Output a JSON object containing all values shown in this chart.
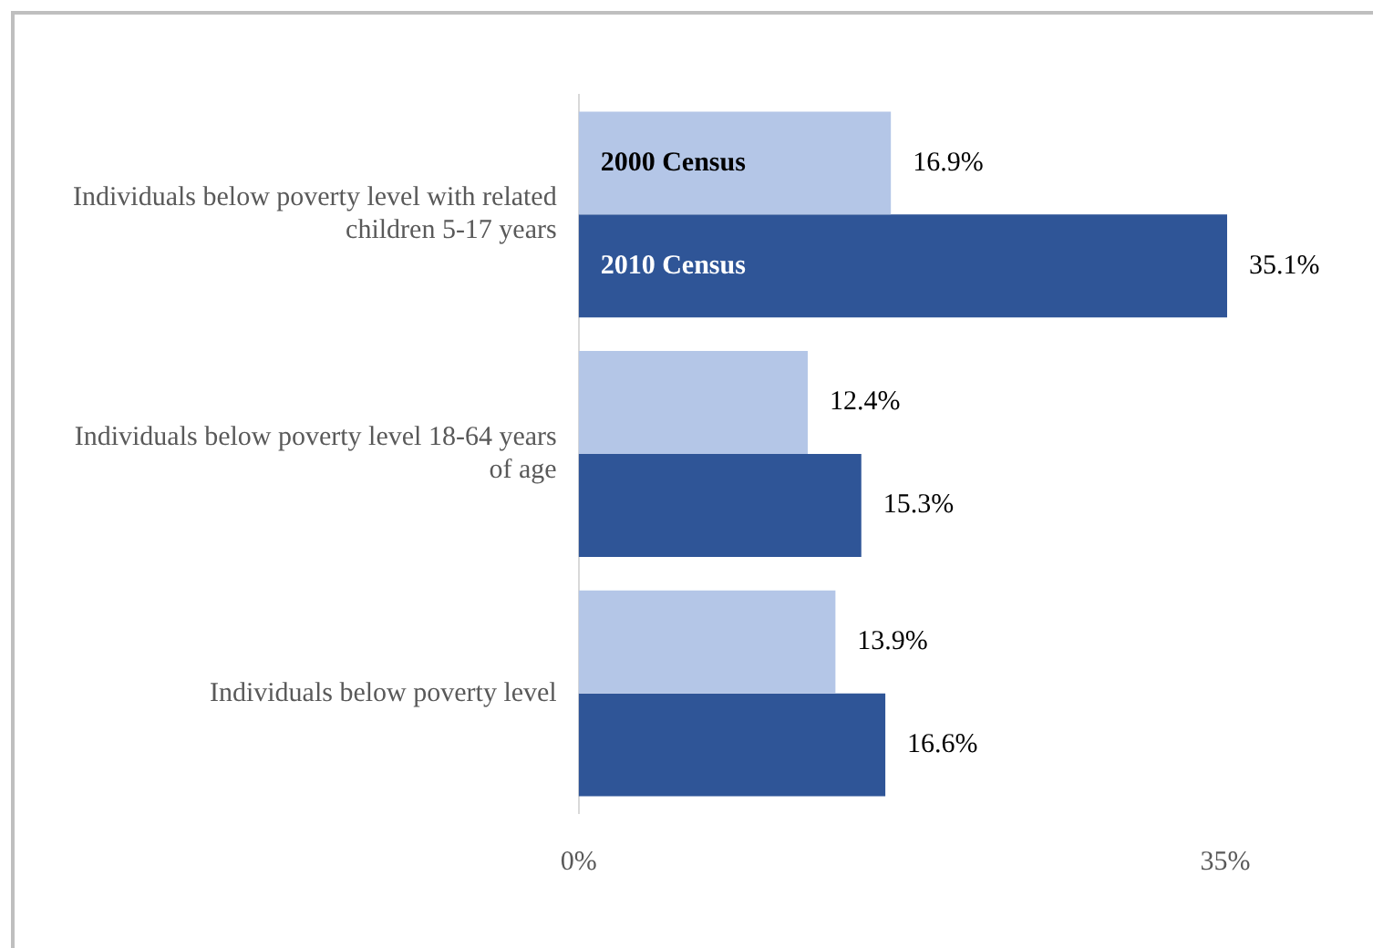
{
  "chart_data": {
    "type": "bar",
    "orientation": "horizontal",
    "categories": [
      "Individuals below poverty level with related children 5-17 years",
      "Individuals below poverty level 18-64 years of age",
      "Individuals below poverty level"
    ],
    "series": [
      {
        "name": "2000 Census",
        "color": "#b4c6e7",
        "values": [
          16.9,
          12.4,
          13.9
        ],
        "value_labels": [
          "16.9%",
          "12.4%",
          "13.9%"
        ]
      },
      {
        "name": "2010 Census",
        "color": "#2f5597",
        "values": [
          35.1,
          15.3,
          16.6
        ],
        "value_labels": [
          "35.1%",
          "15.3%",
          "16.6%"
        ]
      }
    ],
    "xlim": [
      0,
      35.1
    ],
    "xticks": [
      {
        "value": 0,
        "label": "0%"
      },
      {
        "value": 35,
        "label": "35%"
      }
    ],
    "grid": false,
    "legend": false
  }
}
